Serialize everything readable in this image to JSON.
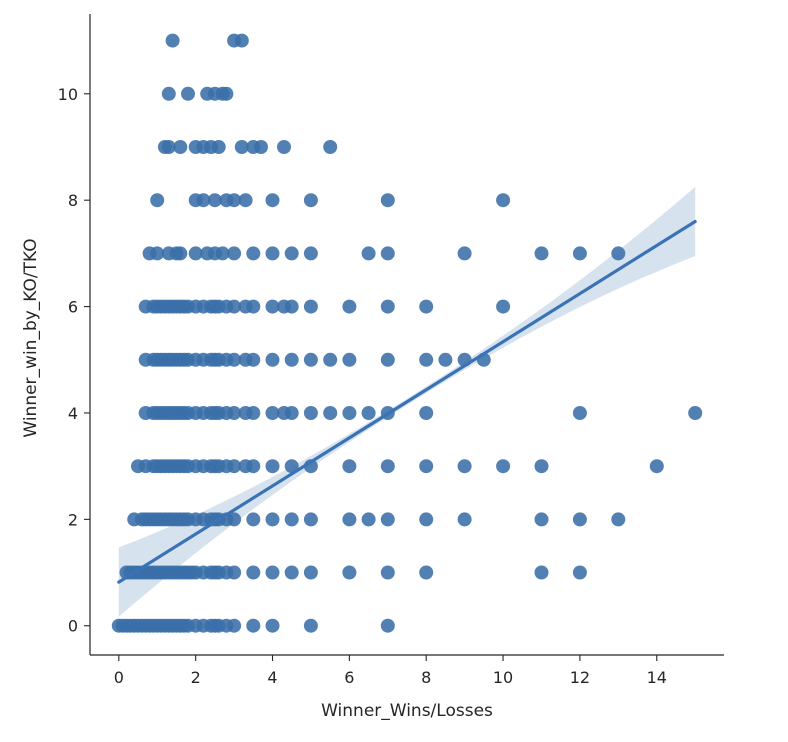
{
  "chart_data": {
    "type": "scatter",
    "xlabel": "Winner_Wins/Losses",
    "ylabel": "Winner_win_by_KO/TKO",
    "xlim": [
      -0.75,
      15.75
    ],
    "ylim": [
      -0.55,
      11.5
    ],
    "xticks": [
      0,
      2,
      4,
      6,
      8,
      10,
      12,
      14
    ],
    "yticks": [
      0,
      2,
      4,
      6,
      8,
      10
    ],
    "grid": false,
    "point_color": "#3a6ea9",
    "line_color": "#3a73b5",
    "band_color": "#c9d8ea",
    "regression": {
      "x_range": [
        0,
        15
      ],
      "intercept": 0.82,
      "slope": 0.452,
      "ci_lower_end": 6.95,
      "ci_upper_end": 8.25
    },
    "rows": [
      {
        "y": 0,
        "x": [
          0,
          0.1,
          0.2,
          0.3,
          0.4,
          0.5,
          0.6,
          0.7,
          0.8,
          0.9,
          1.0,
          1.1,
          1.2,
          1.3,
          1.4,
          1.5,
          1.6,
          1.7,
          1.8,
          2.0,
          2.2,
          2.4,
          2.5,
          2.6,
          2.8,
          3.0,
          3.5,
          4.0,
          5.0,
          7.0
        ]
      },
      {
        "y": 1,
        "x": [
          0.2,
          0.3,
          0.4,
          0.5,
          0.6,
          0.7,
          0.8,
          0.9,
          1.0,
          1.1,
          1.2,
          1.3,
          1.4,
          1.5,
          1.6,
          1.7,
          1.8,
          1.9,
          2.0,
          2.2,
          2.4,
          2.5,
          2.6,
          2.8,
          3.0,
          3.5,
          4.0,
          4.5,
          5.0,
          6.0,
          7.0,
          8.0,
          11.0,
          12.0
        ]
      },
      {
        "y": 2,
        "x": [
          0.4,
          0.6,
          0.7,
          0.8,
          0.9,
          1.0,
          1.1,
          1.2,
          1.3,
          1.4,
          1.5,
          1.6,
          1.7,
          1.8,
          2.0,
          2.2,
          2.4,
          2.5,
          2.6,
          2.8,
          3.0,
          3.5,
          4.0,
          4.5,
          5.0,
          6.0,
          6.5,
          7.0,
          8.0,
          9.0,
          11.0,
          12.0,
          13.0
        ]
      },
      {
        "y": 3,
        "x": [
          0.5,
          0.7,
          0.9,
          1.0,
          1.1,
          1.2,
          1.3,
          1.4,
          1.5,
          1.6,
          1.7,
          1.8,
          2.0,
          2.2,
          2.4,
          2.5,
          2.6,
          2.8,
          3.0,
          3.3,
          3.5,
          4.0,
          4.5,
          5.0,
          6.0,
          7.0,
          8.0,
          9.0,
          10.0,
          11.0,
          14.0
        ]
      },
      {
        "y": 4,
        "x": [
          0.7,
          0.9,
          1.0,
          1.1,
          1.2,
          1.3,
          1.4,
          1.5,
          1.6,
          1.7,
          1.8,
          2.0,
          2.2,
          2.4,
          2.5,
          2.6,
          2.8,
          3.0,
          3.3,
          3.5,
          4.0,
          4.3,
          4.5,
          5.0,
          5.5,
          6.0,
          6.5,
          7.0,
          8.0,
          12.0,
          15.0
        ]
      },
      {
        "y": 5,
        "x": [
          0.7,
          0.9,
          1.0,
          1.1,
          1.2,
          1.3,
          1.4,
          1.5,
          1.6,
          1.7,
          1.8,
          2.0,
          2.2,
          2.4,
          2.5,
          2.6,
          2.8,
          3.0,
          3.3,
          3.5,
          4.0,
          4.5,
          5.0,
          5.5,
          6.0,
          7.0,
          8.0,
          8.5,
          9.0,
          9.5
        ]
      },
      {
        "y": 6,
        "x": [
          0.7,
          0.9,
          1.0,
          1.1,
          1.2,
          1.3,
          1.4,
          1.5,
          1.6,
          1.7,
          1.8,
          2.0,
          2.2,
          2.4,
          2.5,
          2.6,
          2.8,
          3.0,
          3.3,
          3.5,
          4.0,
          4.3,
          4.5,
          5.0,
          6.0,
          7.0,
          8.0,
          10.0
        ]
      },
      {
        "y": 7,
        "x": [
          0.8,
          1.0,
          1.3,
          1.5,
          1.6,
          2.0,
          2.3,
          2.5,
          2.7,
          3.0,
          3.5,
          4.0,
          4.5,
          5.0,
          6.5,
          7.0,
          9.0,
          11.0,
          12.0,
          13.0
        ]
      },
      {
        "y": 8,
        "x": [
          1.0,
          2.0,
          2.2,
          2.5,
          2.8,
          3.0,
          3.3,
          4.0,
          5.0,
          7.0,
          10.0
        ]
      },
      {
        "y": 9,
        "x": [
          1.2,
          1.3,
          1.6,
          2.0,
          2.2,
          2.4,
          2.6,
          3.2,
          3.5,
          3.7,
          4.3,
          5.5
        ]
      },
      {
        "y": 10,
        "x": [
          1.3,
          1.8,
          2.3,
          2.5,
          2.7,
          2.8
        ]
      },
      {
        "y": 11,
        "x": [
          1.4,
          3.0,
          3.2
        ]
      }
    ]
  }
}
